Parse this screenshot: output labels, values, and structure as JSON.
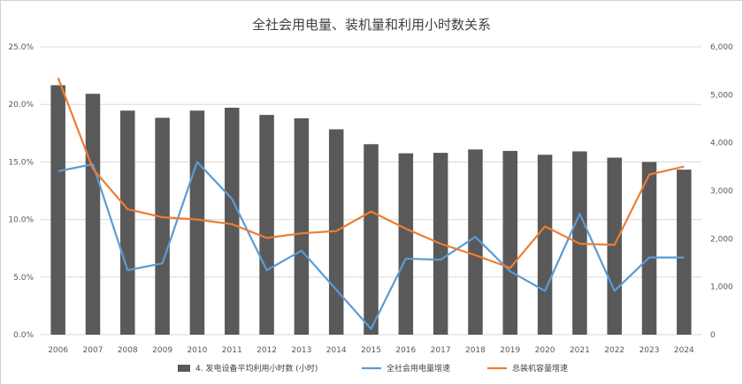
{
  "chart_data": {
    "type": "bar+line",
    "title": "全社会用电量、装机量和利用小时数关系",
    "categories": [
      "2006",
      "2007",
      "2008",
      "2009",
      "2010",
      "2011",
      "2012",
      "2013",
      "2014",
      "2015",
      "2016",
      "2017",
      "2018",
      "2019",
      "2020",
      "2021",
      "2022",
      "2023",
      "2024"
    ],
    "bar_series": {
      "name": "4. 发电设备平均利用小时数 (小时)",
      "axis": "right",
      "color": "#595959",
      "values": [
        5200,
        5020,
        4670,
        4520,
        4670,
        4730,
        4580,
        4510,
        4280,
        3970,
        3780,
        3790,
        3860,
        3830,
        3750,
        3820,
        3690,
        3600,
        3440
      ]
    },
    "line_series": [
      {
        "name": "全社会用电量增速",
        "axis": "left",
        "color": "#5B9BD5",
        "values": [
          14.2,
          14.8,
          5.6,
          6.2,
          15.0,
          11.8,
          5.6,
          7.3,
          3.9,
          0.5,
          6.6,
          6.5,
          8.5,
          5.5,
          3.8,
          10.5,
          3.8,
          6.7,
          6.7
        ]
      },
      {
        "name": "总装机容量增速",
        "axis": "left",
        "color": "#ED7D31",
        "values": [
          22.3,
          14.4,
          10.9,
          10.2,
          10.0,
          9.6,
          8.4,
          8.8,
          9.0,
          10.7,
          9.2,
          7.9,
          6.9,
          5.8,
          9.4,
          7.9,
          7.8,
          13.9,
          14.6
        ]
      }
    ],
    "y_left": {
      "min": 0,
      "max": 25,
      "ticks": [
        "0.0%",
        "5.0%",
        "10.0%",
        "15.0%",
        "20.0%",
        "25.0%"
      ]
    },
    "y_right": {
      "min": 0,
      "max": 6000,
      "ticks": [
        "0",
        "1,000",
        "2,000",
        "3,000",
        "4,000",
        "5,000",
        "6,000"
      ]
    },
    "grid": true,
    "legend_position": "bottom"
  }
}
